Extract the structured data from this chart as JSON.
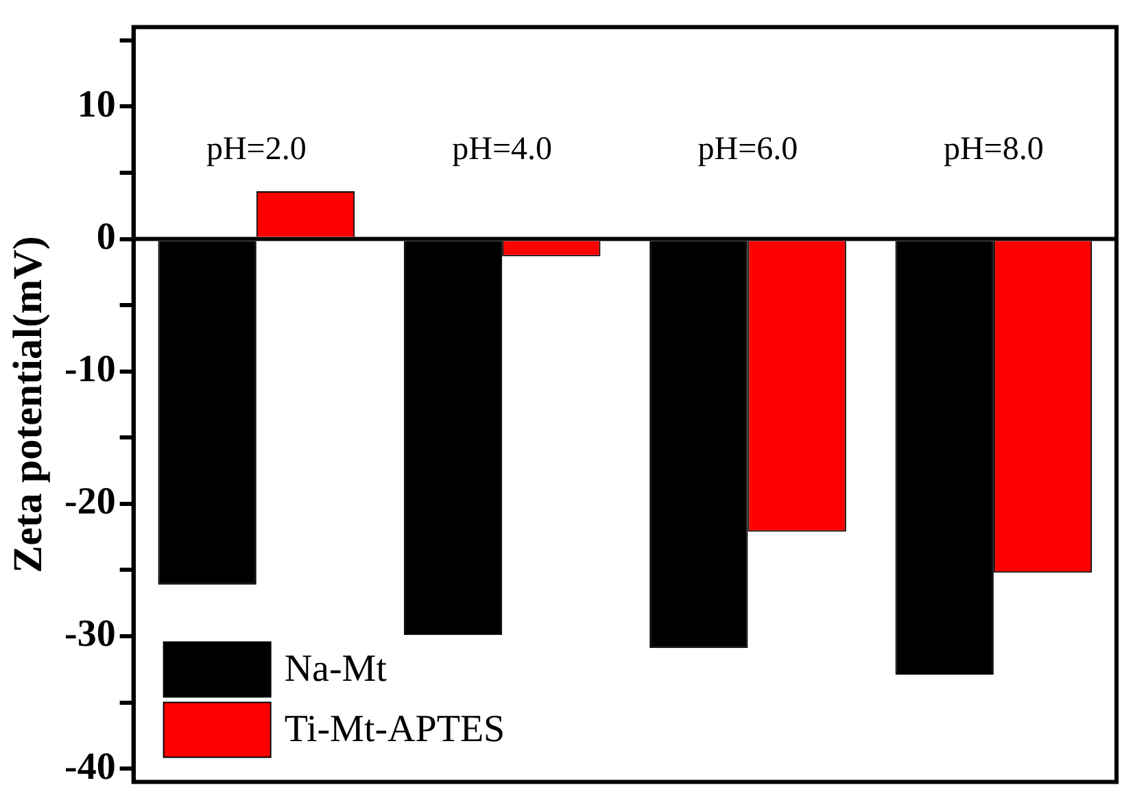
{
  "chart_data": {
    "type": "bar",
    "ylabel": "Zeta potential(mV)",
    "categories": [
      "pH=2.0",
      "pH=4.0",
      "pH=6.0",
      "pH=8.0"
    ],
    "series": [
      {
        "name": "Na-Mt",
        "color": "#000000",
        "values": [
          -26.1,
          -29.9,
          -30.9,
          -32.9
        ]
      },
      {
        "name": "Ti-Mt-APTES",
        "color": "#ff0000",
        "values": [
          3.6,
          -1.3,
          -22.1,
          -25.2
        ]
      }
    ],
    "ylim": [
      -41,
      16
    ],
    "yticks": [
      -40,
      {
        "value": -35,
        "label": null
      },
      -30,
      {
        "value": -25,
        "label": null
      },
      -20,
      {
        "value": -15,
        "label": null
      },
      -10,
      {
        "value": -5,
        "label": null
      },
      0,
      {
        "value": 5,
        "label": null
      },
      10,
      {
        "value": 15,
        "label": null
      }
    ],
    "legend": "bottom left",
    "grid": false
  }
}
